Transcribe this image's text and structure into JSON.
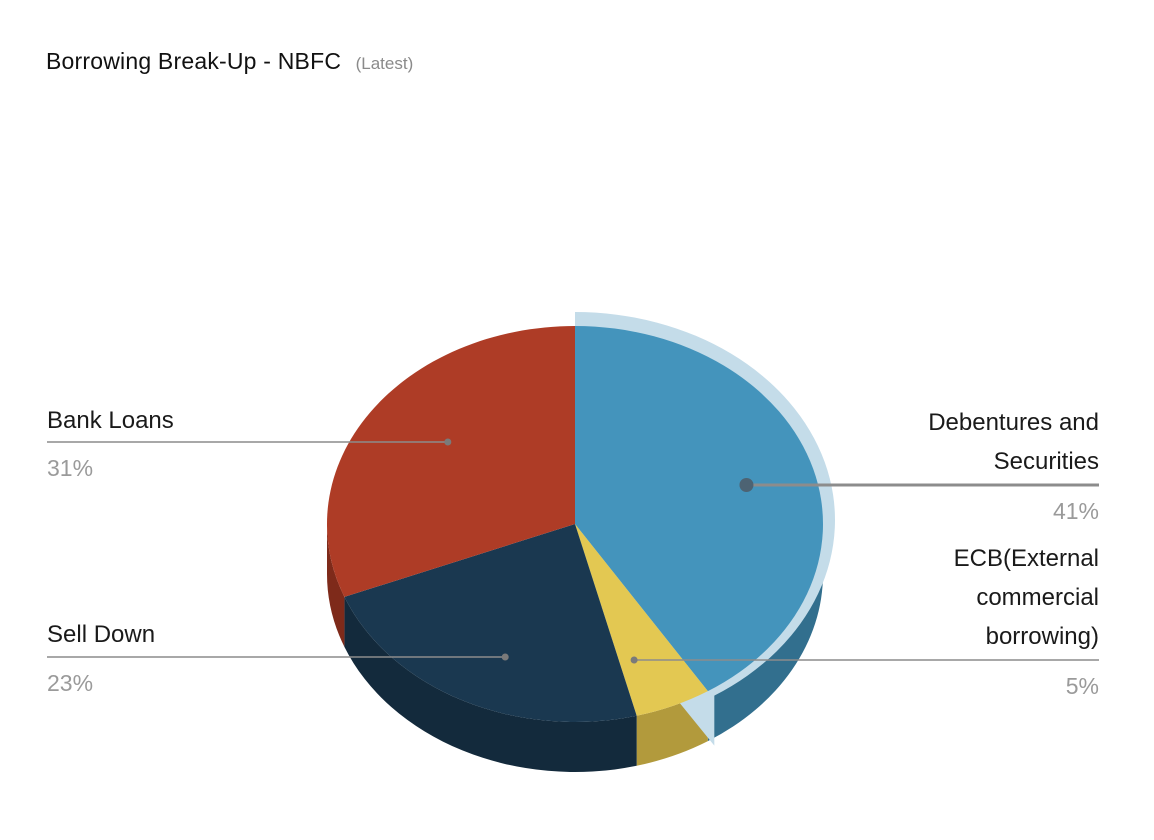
{
  "header": {
    "title": "Borrowing Break-Up - NBFC",
    "subtitle": "(Latest)"
  },
  "chart_data": {
    "type": "pie",
    "title": "Borrowing Break-Up - NBFC",
    "subtitle": "(Latest)",
    "slices": [
      {
        "name": "Debentures and Securities",
        "label_lines": [
          "Debentures and",
          "Securities"
        ],
        "value": 41,
        "value_label": "41%",
        "color": "#4494bc",
        "side_color": "#326f8e",
        "highlighted": true
      },
      {
        "name": "ECB(External commercial borrowing)",
        "label_lines": [
          "ECB(External",
          "commercial",
          "borrowing)"
        ],
        "value": 5,
        "value_label": "5%",
        "color": "#e3c852",
        "side_color": "#b29a3c"
      },
      {
        "name": "Sell Down",
        "label_lines": [
          "Sell Down"
        ],
        "value": 23,
        "value_label": "23%",
        "color": "#1a3850",
        "side_color": "#132a3c"
      },
      {
        "name": "Bank Loans",
        "label_lines": [
          "Bank Loans"
        ],
        "value": 31,
        "value_label": "31%",
        "color": "#ae3c26",
        "side_color": "#7e2a1a"
      }
    ],
    "start_angle": "12 o'clock",
    "direction": "clockwise",
    "style": "3d",
    "legend": "none"
  }
}
